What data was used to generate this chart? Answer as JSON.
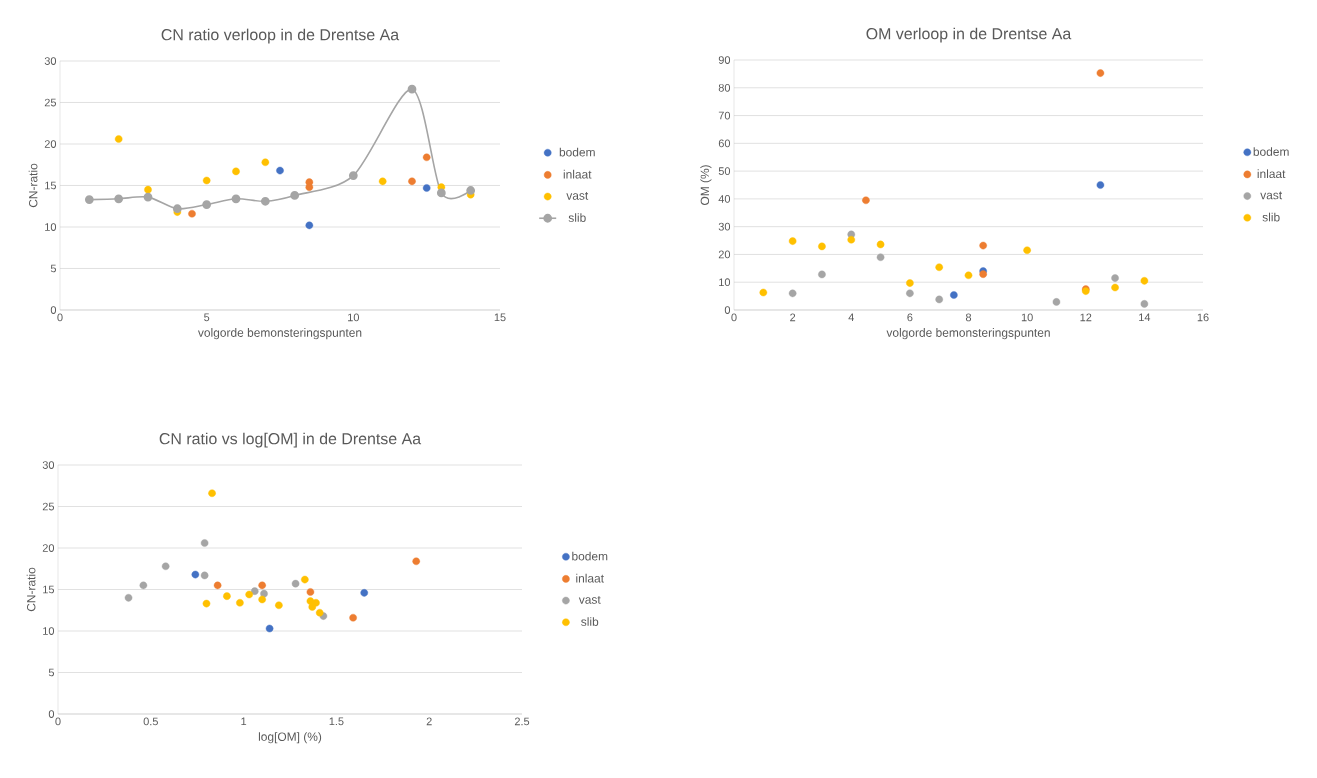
{
  "chart_data": [
    {
      "type": "scatter",
      "title": "CN ratio verloop in de Drentse Aa",
      "xlabel": "volgorde bemonsteringspunten",
      "ylabel": "CN-ratio",
      "xlim": [
        0,
        15
      ],
      "ylim": [
        0,
        30
      ],
      "xticks": [
        0,
        5,
        10,
        15
      ],
      "yticks": [
        0,
        5,
        10,
        15,
        20,
        25,
        30
      ],
      "grid": "y",
      "legend": "right",
      "marker": "circle",
      "series": [
        {
          "name": "bodem",
          "color": "#4472c4",
          "x": [
            7.5,
            8.5,
            12.5
          ],
          "values": [
            16.8,
            10.2,
            14.7
          ]
        },
        {
          "name": "inlaat",
          "color": "#ed7d31",
          "x": [
            4.5,
            8.5,
            8.5,
            12,
            12.5
          ],
          "values": [
            11.6,
            15.4,
            14.8,
            15.5,
            18.4
          ]
        },
        {
          "name": "vast",
          "color": "#ffc000",
          "x": [
            2,
            3,
            4,
            5,
            6,
            7,
            11,
            13,
            14
          ],
          "values": [
            20.6,
            14.5,
            11.8,
            15.6,
            16.7,
            17.8,
            15.5,
            14.8,
            13.9
          ]
        },
        {
          "name": "slib",
          "color": "#a5a5a5",
          "type": "line",
          "x": [
            1,
            2,
            3,
            4,
            5,
            6,
            7,
            8,
            10,
            12,
            13,
            14
          ],
          "values": [
            13.3,
            13.4,
            13.6,
            12.2,
            12.7,
            13.4,
            13.1,
            13.8,
            16.2,
            26.6,
            14.1,
            14.4
          ]
        }
      ]
    },
    {
      "type": "scatter",
      "title": "OM verloop in de Drentse Aa",
      "xlabel": "volgorde bemonsteringspunten",
      "ylabel": "OM (%)",
      "xlim": [
        0,
        16
      ],
      "ylim": [
        0,
        90
      ],
      "xticks": [
        0,
        2,
        4,
        6,
        8,
        10,
        12,
        14,
        16
      ],
      "yticks": [
        0,
        10,
        20,
        30,
        40,
        50,
        60,
        70,
        80,
        90
      ],
      "grid": "y",
      "legend": "right",
      "marker": "circle",
      "series": [
        {
          "name": "bodem",
          "color": "#4472c4",
          "x": [
            7.5,
            8.5,
            12.5
          ],
          "values": [
            5.4,
            14,
            45
          ]
        },
        {
          "name": "inlaat",
          "color": "#ed7d31",
          "x": [
            4.5,
            8.5,
            8.5,
            12,
            12.5
          ],
          "values": [
            39.5,
            23.2,
            12.9,
            7.5,
            85.3
          ]
        },
        {
          "name": "vast",
          "color": "#a5a5a5",
          "x": [
            2,
            3,
            4,
            5,
            6,
            7,
            11,
            13,
            14
          ],
          "values": [
            6,
            12.8,
            27.2,
            19,
            6,
            3.8,
            2.9,
            11.5,
            2.2
          ]
        },
        {
          "name": "slib",
          "color": "#ffc000",
          "x": [
            1,
            2,
            3,
            4,
            5,
            6,
            7,
            8,
            10,
            12,
            13,
            14
          ],
          "values": [
            6.3,
            24.8,
            22.9,
            25.3,
            23.6,
            9.7,
            15.4,
            12.5,
            21.5,
            6.8,
            8.1,
            10.5
          ]
        }
      ]
    },
    {
      "type": "scatter",
      "title": "CN ratio vs log[OM] in de Drentse Aa",
      "xlabel": "log[OM] (%)",
      "ylabel": "CN-ratio",
      "xlim": [
        0,
        2.5
      ],
      "ylim": [
        0,
        30
      ],
      "xticks": [
        0,
        0.5,
        1,
        1.5,
        2,
        2.5
      ],
      "yticks": [
        0,
        5,
        10,
        15,
        20,
        25,
        30
      ],
      "grid": "y",
      "legend": "right",
      "marker": "circle",
      "series": [
        {
          "name": "bodem",
          "color": "#4472c4",
          "x": [
            0.74,
            1.14,
            1.65
          ],
          "values": [
            16.8,
            10.3,
            14.6
          ]
        },
        {
          "name": "inlaat",
          "color": "#ed7d31",
          "x": [
            0.86,
            1.1,
            1.36,
            1.59,
            1.93
          ],
          "values": [
            15.5,
            15.5,
            14.7,
            11.6,
            18.4
          ]
        },
        {
          "name": "vast",
          "color": "#a5a5a5",
          "x": [
            0.38,
            0.46,
            0.58,
            0.79,
            0.79,
            1.06,
            1.11,
            1.28,
            1.43
          ],
          "values": [
            14.0,
            15.5,
            17.8,
            20.6,
            16.7,
            14.8,
            14.5,
            15.7,
            11.8
          ]
        },
        {
          "name": "slib",
          "color": "#ffc000",
          "x": [
            0.83,
            0.8,
            0.91,
            0.98,
            1.03,
            1.1,
            1.19,
            1.33,
            1.36,
            1.37,
            1.39,
            1.41
          ],
          "values": [
            26.6,
            13.3,
            14.2,
            13.4,
            14.4,
            13.8,
            13.1,
            16.2,
            13.6,
            12.9,
            13.4,
            12.2
          ]
        }
      ]
    }
  ]
}
